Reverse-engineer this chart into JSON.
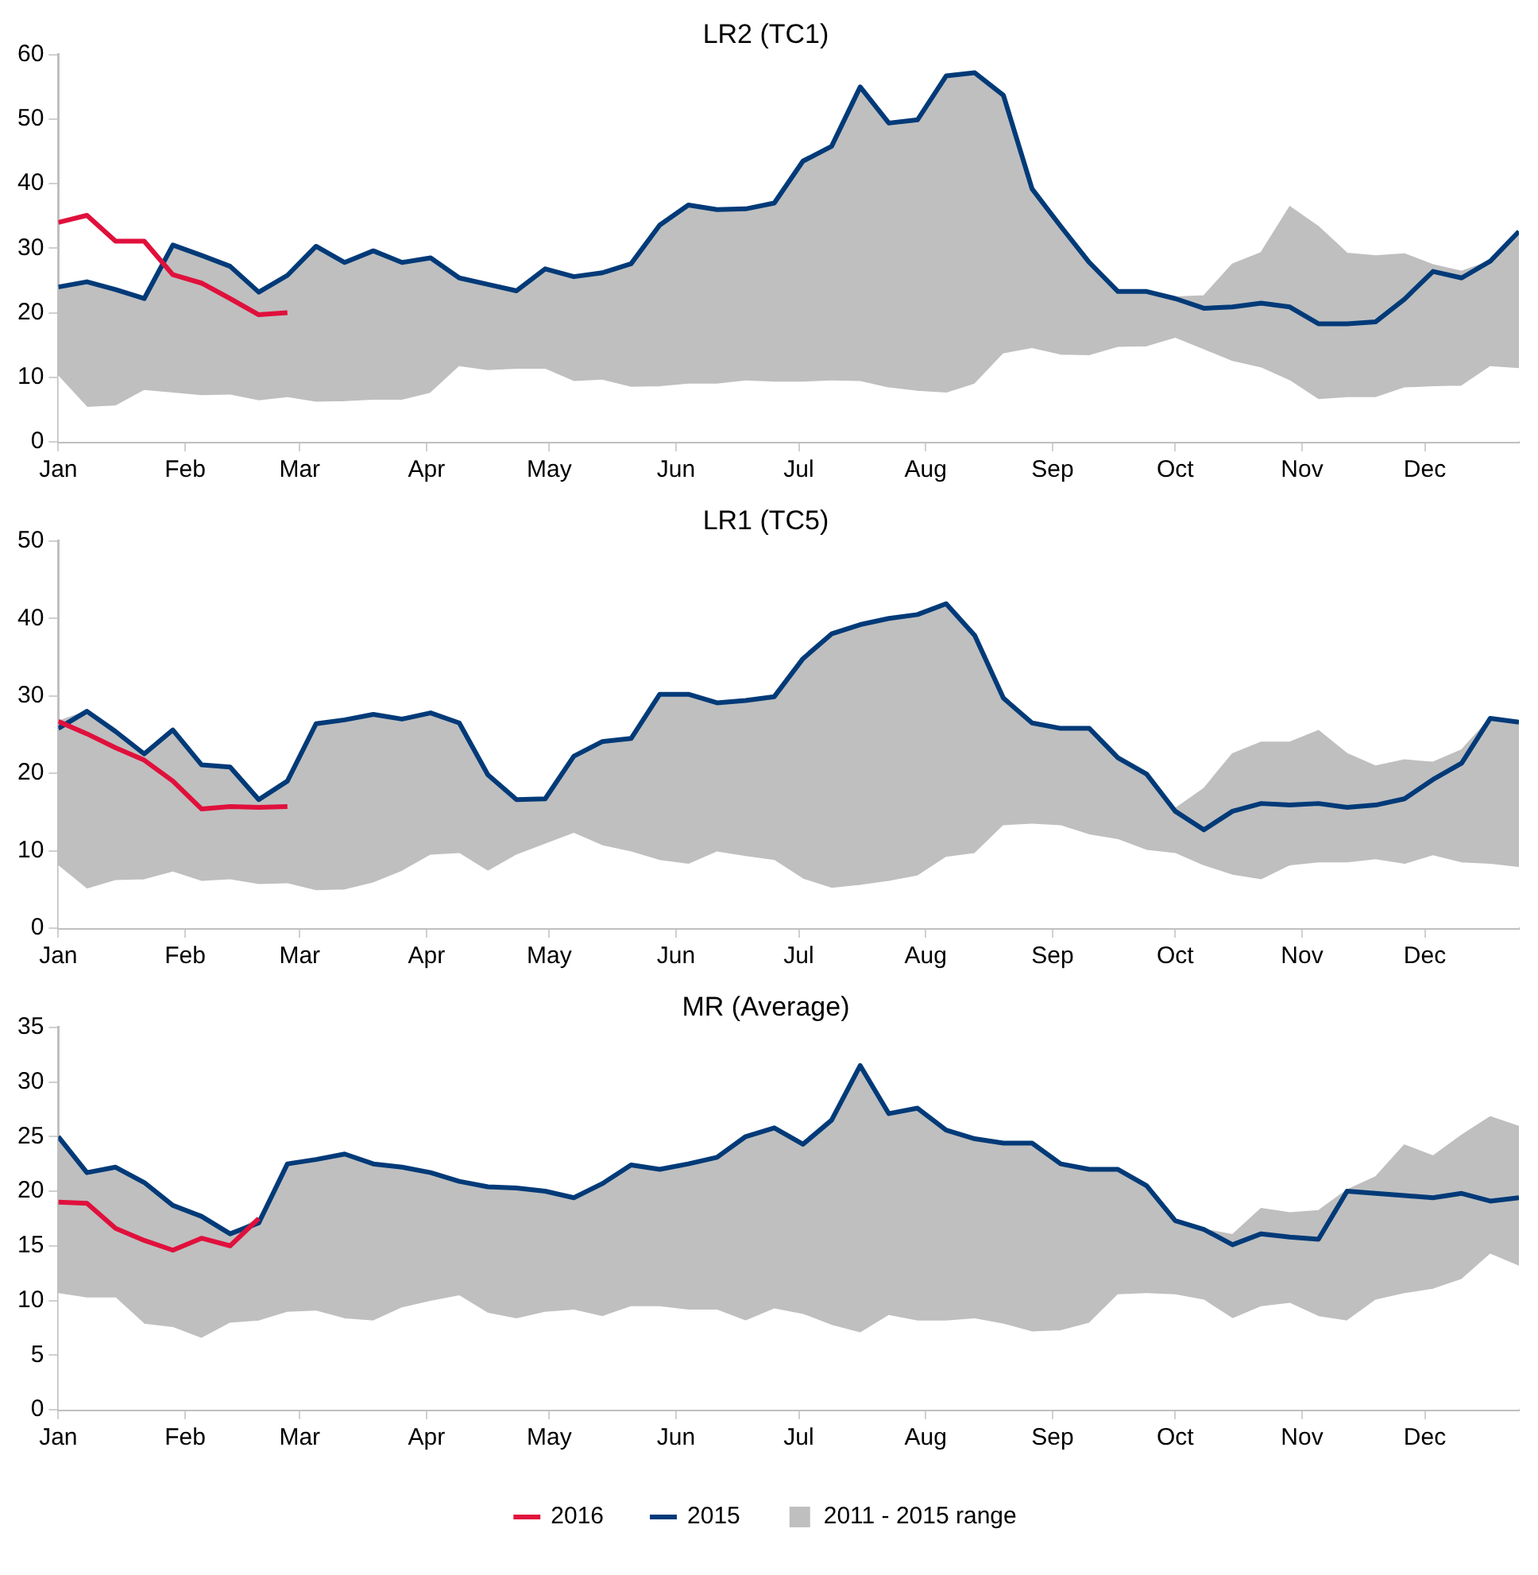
{
  "chart_data": [
    {
      "type": "line",
      "title": "LR2 (TC1)",
      "x": [
        "--01-01",
        "--01-08",
        "--01-15",
        "--01-22",
        "--01-29",
        "--02-05",
        "--02-12",
        "--02-19",
        "--02-26",
        "--03-05",
        "--03-12",
        "--03-19",
        "--03-26",
        "--04-02",
        "--04-09",
        "--04-16",
        "--04-23",
        "--04-30",
        "--05-07",
        "--05-14",
        "--05-21",
        "--05-28",
        "--06-04",
        "--06-11",
        "--06-18",
        "--06-25",
        "--07-02",
        "--07-09",
        "--07-16",
        "--07-23",
        "--07-30",
        "--08-06",
        "--08-13",
        "--08-20",
        "--08-27",
        "--09-03",
        "--09-10",
        "--09-17",
        "--09-24",
        "--10-01",
        "--10-08",
        "--10-15",
        "--10-22",
        "--10-29",
        "--11-05",
        "--11-12",
        "--11-19",
        "--11-26",
        "--12-03",
        "--12-10",
        "--12-17",
        "--12-24"
      ],
      "series": [
        {
          "type": "area",
          "color": "#bfbfbf",
          "values": [
            24.0,
            24.8,
            23.6,
            22.2,
            30.5,
            28.9,
            27.2,
            23.2,
            25.8,
            30.3,
            27.8,
            29.6,
            27.8,
            28.5,
            25.4,
            24.4,
            23.4,
            26.8,
            25.6,
            26.2,
            27.6,
            33.6,
            36.7,
            36.0,
            36.1,
            37.0,
            43.5,
            45.8,
            55.0,
            49.4,
            49.9,
            56.7,
            57.2,
            53.7,
            39.2,
            33.4,
            27.8,
            23.3,
            23.3,
            22.4,
            22.6,
            27.5,
            29.3,
            36.4,
            33.3,
            29.2,
            28.8,
            29.1,
            27.4,
            26.4,
            28.0,
            32.6
          ]
        },
        {
          "type": "area",
          "color": "#ffffff",
          "values": [
            10.1,
            5.3,
            5.5,
            7.9,
            7.5,
            7.1,
            7.2,
            6.3,
            6.8,
            6.1,
            6.2,
            6.4,
            6.4,
            7.5,
            11.6,
            11.0,
            11.2,
            11.2,
            9.3,
            9.5,
            8.4,
            8.5,
            8.9,
            8.9,
            9.4,
            9.2,
            9.2,
            9.4,
            9.3,
            8.3,
            7.8,
            7.5,
            8.9,
            13.6,
            14.4,
            13.4,
            13.3,
            14.6,
            14.7,
            16.0,
            14.2,
            12.4,
            11.4,
            9.4,
            6.5,
            6.8,
            6.8,
            8.3,
            8.5,
            8.6,
            11.6,
            11.3
          ]
        },
        {
          "type": "line",
          "color": "#003a78",
          "values": [
            24.0,
            24.8,
            23.6,
            22.2,
            30.5,
            28.9,
            27.2,
            23.2,
            25.8,
            30.3,
            27.8,
            29.6,
            27.8,
            28.5,
            25.4,
            24.4,
            23.4,
            26.8,
            25.6,
            26.2,
            27.6,
            33.6,
            36.7,
            36.0,
            36.1,
            37.0,
            43.5,
            45.8,
            55.0,
            49.4,
            49.9,
            56.7,
            57.2,
            53.7,
            39.2,
            33.4,
            27.8,
            23.3,
            23.3,
            22.2,
            20.7,
            20.9,
            21.5,
            20.9,
            18.3,
            18.3,
            18.6,
            22.1,
            26.4,
            25.4,
            28.0,
            32.6
          ]
        },
        {
          "type": "line",
          "color": "#e0103c",
          "values": [
            34.0,
            35.1,
            31.1,
            31.1,
            25.9,
            24.6,
            22.2,
            19.7,
            20.0,
            null,
            null,
            null,
            null,
            null,
            null,
            null,
            null,
            null,
            null,
            null,
            null,
            null,
            null,
            null,
            null,
            null,
            null,
            null,
            null,
            null,
            null,
            null,
            null,
            null,
            null,
            null,
            null,
            null,
            null,
            null,
            null,
            null,
            null,
            null,
            null,
            null,
            null,
            null,
            null,
            null,
            null,
            null
          ]
        }
      ],
      "xlim": [
        "--01-01",
        "--12-24"
      ],
      "xticks": [
        {
          "value": "--01-01",
          "label": "Jan"
        },
        {
          "value": "--02-01",
          "label": "Feb"
        },
        {
          "value": "--03-01",
          "label": "Mar"
        },
        {
          "value": "--04-01",
          "label": "Apr"
        },
        {
          "value": "--05-01",
          "label": "May"
        },
        {
          "value": "--06-01",
          "label": "Jun"
        },
        {
          "value": "--07-01",
          "label": "Jul"
        },
        {
          "value": "--08-01",
          "label": "Aug"
        },
        {
          "value": "--09-01",
          "label": "Sep"
        },
        {
          "value": "--10-01",
          "label": "Oct"
        },
        {
          "value": "--11-01",
          "label": "Nov"
        },
        {
          "value": "--12-01",
          "label": "Dec"
        }
      ],
      "ylim": [
        0,
        60
      ],
      "yticks": [
        0,
        10,
        20,
        30,
        40,
        50,
        60
      ],
      "marker": "none",
      "legend": false
    },
    {
      "type": "line",
      "title": "LR1 (TC5)",
      "x": [
        "--01-01",
        "--01-08",
        "--01-15",
        "--01-22",
        "--01-29",
        "--02-05",
        "--02-12",
        "--02-19",
        "--02-26",
        "--03-05",
        "--03-12",
        "--03-19",
        "--03-26",
        "--04-02",
        "--04-09",
        "--04-16",
        "--04-23",
        "--04-30",
        "--05-07",
        "--05-14",
        "--05-21",
        "--05-28",
        "--06-04",
        "--06-11",
        "--06-18",
        "--06-25",
        "--07-02",
        "--07-09",
        "--07-16",
        "--07-23",
        "--07-30",
        "--08-06",
        "--08-13",
        "--08-20",
        "--08-27",
        "--09-03",
        "--09-10",
        "--09-17",
        "--09-24",
        "--10-01",
        "--10-08",
        "--10-15",
        "--10-22",
        "--10-29",
        "--11-05",
        "--11-12",
        "--11-19",
        "--11-26",
        "--12-03",
        "--12-10",
        "--12-17",
        "--12-24"
      ],
      "series": [
        {
          "type": "area",
          "color": "#bfbfbf",
          "values": [
            26.7,
            28.0,
            25.4,
            22.5,
            25.6,
            21.1,
            20.8,
            16.6,
            19.0,
            26.4,
            26.9,
            27.6,
            27.0,
            27.8,
            26.5,
            19.8,
            16.6,
            16.7,
            22.2,
            24.1,
            24.5,
            30.2,
            30.2,
            29.1,
            29.4,
            29.9,
            34.8,
            38.0,
            39.2,
            40.0,
            40.5,
            41.9,
            37.8,
            29.7,
            26.5,
            25.8,
            25.8,
            22.0,
            19.9,
            15.4,
            18.0,
            22.5,
            24.0,
            24.0,
            25.5,
            22.5,
            20.9,
            21.7,
            21.4,
            23.0,
            27.1,
            26.6
          ]
        },
        {
          "type": "area",
          "color": "#ffffff",
          "values": [
            8.0,
            5.0,
            6.1,
            6.2,
            7.2,
            6.0,
            6.2,
            5.6,
            5.7,
            4.8,
            4.9,
            5.8,
            7.3,
            9.4,
            9.6,
            7.3,
            9.4,
            10.8,
            12.2,
            10.6,
            9.8,
            8.7,
            8.2,
            9.8,
            9.2,
            8.7,
            6.3,
            5.1,
            5.5,
            6.0,
            6.7,
            9.1,
            9.6,
            13.2,
            13.4,
            13.2,
            12.0,
            11.4,
            10.0,
            9.6,
            8.0,
            6.8,
            6.2,
            8.0,
            8.4,
            8.4,
            8.8,
            8.2,
            9.3,
            8.4,
            8.2,
            7.8
          ]
        },
        {
          "type": "line",
          "color": "#003a78",
          "values": [
            25.8,
            28.0,
            25.4,
            22.5,
            25.6,
            21.1,
            20.8,
            16.6,
            19.0,
            26.4,
            26.9,
            27.6,
            27.0,
            27.8,
            26.5,
            19.8,
            16.6,
            16.7,
            22.2,
            24.1,
            24.5,
            30.2,
            30.2,
            29.1,
            29.4,
            29.9,
            34.8,
            38.0,
            39.2,
            40.0,
            40.5,
            41.9,
            37.8,
            29.7,
            26.5,
            25.8,
            25.8,
            22.0,
            19.9,
            15.1,
            12.7,
            15.1,
            16.1,
            15.9,
            16.1,
            15.6,
            15.9,
            16.7,
            19.2,
            21.3,
            27.1,
            26.6
          ]
        },
        {
          "type": "line",
          "color": "#e0103c",
          "values": [
            26.7,
            25.1,
            23.3,
            21.7,
            19.0,
            15.4,
            15.7,
            15.6,
            15.7,
            null,
            null,
            null,
            null,
            null,
            null,
            null,
            null,
            null,
            null,
            null,
            null,
            null,
            null,
            null,
            null,
            null,
            null,
            null,
            null,
            null,
            null,
            null,
            null,
            null,
            null,
            null,
            null,
            null,
            null,
            null,
            null,
            null,
            null,
            null,
            null,
            null,
            null,
            null,
            null,
            null,
            null,
            null
          ]
        }
      ],
      "xlim": [
        "--01-01",
        "--12-24"
      ],
      "xticks": [
        {
          "value": "--01-01",
          "label": "Jan"
        },
        {
          "value": "--02-01",
          "label": "Feb"
        },
        {
          "value": "--03-01",
          "label": "Mar"
        },
        {
          "value": "--04-01",
          "label": "Apr"
        },
        {
          "value": "--05-01",
          "label": "May"
        },
        {
          "value": "--06-01",
          "label": "Jun"
        },
        {
          "value": "--07-01",
          "label": "Jul"
        },
        {
          "value": "--08-01",
          "label": "Aug"
        },
        {
          "value": "--09-01",
          "label": "Sep"
        },
        {
          "value": "--10-01",
          "label": "Oct"
        },
        {
          "value": "--11-01",
          "label": "Nov"
        },
        {
          "value": "--12-01",
          "label": "Dec"
        }
      ],
      "ylim": [
        0,
        50
      ],
      "yticks": [
        0,
        10,
        20,
        30,
        40,
        50
      ],
      "marker": "none",
      "legend": false
    },
    {
      "type": "line",
      "title": "MR (Average)",
      "x": [
        "--01-01",
        "--01-08",
        "--01-15",
        "--01-22",
        "--01-29",
        "--02-05",
        "--02-12",
        "--02-19",
        "--02-26",
        "--03-05",
        "--03-12",
        "--03-19",
        "--03-26",
        "--04-02",
        "--04-09",
        "--04-16",
        "--04-23",
        "--04-30",
        "--05-07",
        "--05-14",
        "--05-21",
        "--05-28",
        "--06-04",
        "--06-11",
        "--06-18",
        "--06-25",
        "--07-02",
        "--07-09",
        "--07-16",
        "--07-23",
        "--07-30",
        "--08-06",
        "--08-13",
        "--08-20",
        "--08-27",
        "--09-03",
        "--09-10",
        "--09-17",
        "--09-24",
        "--10-01",
        "--10-08",
        "--10-15",
        "--10-22",
        "--10-29",
        "--11-05",
        "--11-12",
        "--11-19",
        "--11-26",
        "--12-03",
        "--12-10",
        "--12-17",
        "--12-24"
      ],
      "series": [
        {
          "name": "2011 - 2015 range",
          "type": "area",
          "color": "#bfbfbf",
          "values": [
            25.0,
            21.7,
            22.2,
            20.8,
            18.7,
            17.7,
            16.1,
            17.5,
            22.5,
            22.9,
            23.4,
            22.5,
            22.2,
            21.7,
            20.9,
            20.4,
            20.3,
            20.0,
            19.4,
            20.7,
            22.4,
            22.0,
            22.5,
            23.1,
            25.0,
            25.8,
            24.3,
            26.5,
            31.5,
            27.1,
            27.6,
            25.6,
            24.8,
            24.4,
            24.4,
            22.5,
            22.0,
            22.0,
            20.5,
            17.3,
            16.5,
            16.0,
            18.4,
            18.0,
            18.2,
            20.1,
            21.3,
            24.2,
            23.2,
            25.1,
            26.8,
            25.9
          ]
        },
        {
          "type": "area",
          "color": "#ffffff",
          "values": [
            10.6,
            10.2,
            10.2,
            7.8,
            7.5,
            6.5,
            7.9,
            8.1,
            8.9,
            9.0,
            8.3,
            8.1,
            9.3,
            9.9,
            10.4,
            8.8,
            8.3,
            8.9,
            9.1,
            8.5,
            9.4,
            9.4,
            9.1,
            9.1,
            8.1,
            9.2,
            8.7,
            7.7,
            7.0,
            8.6,
            8.1,
            8.1,
            8.3,
            7.8,
            7.1,
            7.2,
            7.9,
            10.5,
            10.6,
            10.5,
            10.0,
            8.3,
            9.4,
            9.7,
            8.5,
            8.1,
            10.0,
            10.6,
            11.0,
            11.9,
            14.2,
            13.1
          ]
        },
        {
          "name": "2015",
          "type": "line",
          "color": "#003a78",
          "values": [
            25.0,
            21.7,
            22.2,
            20.8,
            18.7,
            17.7,
            16.1,
            17.1,
            22.5,
            22.9,
            23.4,
            22.5,
            22.2,
            21.7,
            20.9,
            20.4,
            20.3,
            20.0,
            19.4,
            20.7,
            22.4,
            22.0,
            22.5,
            23.1,
            25.0,
            25.8,
            24.3,
            26.5,
            31.5,
            27.1,
            27.6,
            25.6,
            24.8,
            24.4,
            24.4,
            22.5,
            22.0,
            22.0,
            20.5,
            17.3,
            16.5,
            15.1,
            16.1,
            15.8,
            15.6,
            20.0,
            19.8,
            19.6,
            19.4,
            19.8,
            19.1,
            19.4
          ]
        },
        {
          "name": "2016",
          "type": "line",
          "color": "#e0103c",
          "values": [
            19.0,
            18.9,
            16.6,
            15.5,
            14.6,
            15.7,
            15.0,
            17.5,
            null,
            null,
            null,
            null,
            null,
            null,
            null,
            null,
            null,
            null,
            null,
            null,
            null,
            null,
            null,
            null,
            null,
            null,
            null,
            null,
            null,
            null,
            null,
            null,
            null,
            null,
            null,
            null,
            null,
            null,
            null,
            null,
            null,
            null,
            null,
            null,
            null,
            null,
            null,
            null,
            null,
            null,
            null,
            null
          ]
        }
      ],
      "xlim": [
        "--01-01",
        "--12-24"
      ],
      "xticks": [
        {
          "value": "--01-01",
          "label": "Jan"
        },
        {
          "value": "--02-01",
          "label": "Feb"
        },
        {
          "value": "--03-01",
          "label": "Mar"
        },
        {
          "value": "--04-01",
          "label": "Apr"
        },
        {
          "value": "--05-01",
          "label": "May"
        },
        {
          "value": "--06-01",
          "label": "Jun"
        },
        {
          "value": "--07-01",
          "label": "Jul"
        },
        {
          "value": "--08-01",
          "label": "Aug"
        },
        {
          "value": "--09-01",
          "label": "Sep"
        },
        {
          "value": "--10-01",
          "label": "Oct"
        },
        {
          "value": "--11-01",
          "label": "Nov"
        },
        {
          "value": "--12-01",
          "label": "Dec"
        }
      ],
      "ylim": [
        0,
        35
      ],
      "yticks": [
        0,
        5,
        10,
        15,
        20,
        25,
        30,
        35
      ],
      "marker": "none",
      "legend": "bottom"
    }
  ]
}
